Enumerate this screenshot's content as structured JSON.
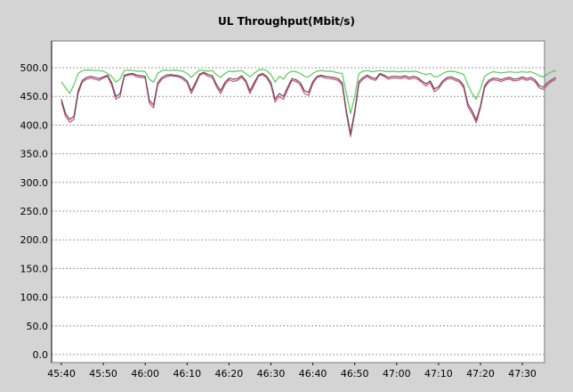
{
  "chart_data": {
    "type": "line",
    "title": "UL Throughput(Mbit/s)",
    "xlabel": "",
    "ylabel": "",
    "ylim": [
      0,
      500
    ],
    "y_ticks": [
      "0.0",
      "50.0",
      "100.0",
      "150.0",
      "200.0",
      "250.0",
      "300.0",
      "350.0",
      "400.0",
      "450.0",
      "500.0"
    ],
    "x_ticks": [
      "45:40",
      "45:50",
      "46:00",
      "46:10",
      "46:20",
      "46:30",
      "46:40",
      "46:50",
      "47:00",
      "47:10",
      "47:20",
      "47:30"
    ],
    "x_range_seconds_after_45_40": [
      0,
      118
    ],
    "grid": true,
    "x": [
      "45:40",
      "45:41",
      "45:42",
      "45:43",
      "45:44",
      "45:45",
      "45:46",
      "45:47",
      "45:48",
      "45:49",
      "45:50",
      "45:51",
      "45:52",
      "45:53",
      "45:54",
      "45:55",
      "45:56",
      "45:57",
      "45:58",
      "45:59",
      "46:00",
      "46:01",
      "46:02",
      "46:03",
      "46:04",
      "46:05",
      "46:06",
      "46:07",
      "46:08",
      "46:09",
      "46:10",
      "46:11",
      "46:12",
      "46:13",
      "46:14",
      "46:15",
      "46:16",
      "46:17",
      "46:18",
      "46:19",
      "46:20",
      "46:21",
      "46:22",
      "46:23",
      "46:24",
      "46:25",
      "46:26",
      "46:27",
      "46:28",
      "46:29",
      "46:30",
      "46:31",
      "46:32",
      "46:33",
      "46:34",
      "46:35",
      "46:36",
      "46:37",
      "46:38",
      "46:39",
      "46:40",
      "46:41",
      "46:42",
      "46:43",
      "46:44",
      "46:45",
      "46:46",
      "46:47",
      "46:48",
      "46:49",
      "46:50",
      "46:51",
      "46:52",
      "46:53",
      "46:54",
      "46:55",
      "46:56",
      "46:57",
      "46:58",
      "46:59",
      "47:00",
      "47:01",
      "47:02",
      "47:03",
      "47:04",
      "47:05",
      "47:06",
      "47:07",
      "47:08",
      "47:09",
      "47:10",
      "47:11",
      "47:12",
      "47:13",
      "47:14",
      "47:15",
      "47:16",
      "47:17",
      "47:18",
      "47:19",
      "47:20",
      "47:21",
      "47:22",
      "47:23",
      "47:24",
      "47:25",
      "47:26",
      "47:27",
      "47:28",
      "47:29",
      "47:30",
      "47:31",
      "47:32",
      "47:33",
      "47:34",
      "47:35",
      "47:36",
      "47:37",
      "47:38"
    ],
    "series": [
      {
        "color": "#55cc55",
        "values": [
          475,
          465,
          455,
          470,
          490,
          495,
          496,
          496,
          495,
          495,
          494,
          490,
          485,
          475,
          480,
          495,
          496,
          495,
          494,
          494,
          493,
          480,
          475,
          490,
          495,
          496,
          495,
          496,
          495,
          494,
          490,
          483,
          490,
          496,
          495,
          494,
          495,
          488,
          483,
          490,
          494,
          493,
          494,
          495,
          490,
          484,
          490,
          496,
          497,
          495,
          488,
          475,
          485,
          480,
          490,
          494,
          493,
          490,
          485,
          484,
          490,
          494,
          495,
          494,
          494,
          493,
          491,
          490,
          455,
          420,
          450,
          490,
          494,
          495,
          493,
          494,
          495,
          494,
          493,
          494,
          493,
          493,
          494,
          493,
          494,
          493,
          490,
          488,
          490,
          484,
          485,
          490,
          493,
          494,
          493,
          491,
          488,
          470,
          455,
          445,
          463,
          485,
          490,
          493,
          492,
          491,
          492,
          493,
          492,
          492,
          493,
          492,
          493,
          490,
          486,
          484,
          489,
          493,
          495
        ]
      },
      {
        "color": "#e0407a",
        "values": [
          440,
          415,
          405,
          410,
          455,
          475,
          480,
          482,
          480,
          478,
          482,
          485,
          470,
          445,
          450,
          485,
          487,
          488,
          484,
          483,
          482,
          438,
          430,
          470,
          480,
          484,
          486,
          485,
          484,
          480,
          474,
          455,
          470,
          487,
          490,
          485,
          483,
          467,
          455,
          470,
          479,
          476,
          478,
          483,
          475,
          455,
          470,
          485,
          488,
          482,
          470,
          440,
          450,
          445,
          462,
          478,
          476,
          470,
          455,
          452,
          472,
          483,
          485,
          482,
          481,
          480,
          478,
          470,
          420,
          380,
          420,
          472,
          480,
          485,
          480,
          478,
          488,
          485,
          480,
          482,
          482,
          481,
          483,
          480,
          482,
          480,
          474,
          468,
          474,
          458,
          463,
          474,
          480,
          481,
          478,
          475,
          465,
          432,
          420,
          404,
          430,
          465,
          475,
          479,
          478,
          476,
          479,
          480,
          477,
          478,
          481,
          478,
          480,
          476,
          465,
          462,
          470,
          476,
          480
        ]
      },
      {
        "color": "#555555",
        "values": [
          445,
          420,
          410,
          415,
          460,
          478,
          483,
          485,
          483,
          481,
          484,
          487,
          474,
          450,
          455,
          487,
          489,
          490,
          487,
          486,
          485,
          443,
          435,
          474,
          483,
          487,
          488,
          487,
          486,
          483,
          477,
          460,
          474,
          489,
          492,
          488,
          486,
          471,
          460,
          474,
          482,
          480,
          481,
          486,
          478,
          460,
          474,
          487,
          490,
          485,
          474,
          445,
          455,
          450,
          466,
          481,
          479,
          474,
          460,
          457,
          476,
          485,
          487,
          485,
          484,
          483,
          481,
          474,
          425,
          385,
          425,
          476,
          483,
          487,
          483,
          481,
          490,
          487,
          483,
          485,
          485,
          484,
          486,
          483,
          485,
          483,
          477,
          472,
          477,
          463,
          467,
          477,
          483,
          484,
          481,
          478,
          469,
          437,
          425,
          409,
          434,
          469,
          478,
          482,
          481,
          479,
          482,
          483,
          480,
          481,
          484,
          481,
          483,
          479,
          469,
          466,
          474,
          479,
          483
        ]
      }
    ]
  }
}
